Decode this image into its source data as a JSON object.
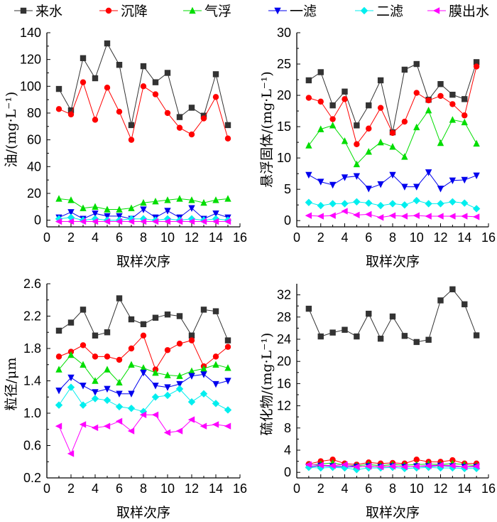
{
  "legend": [
    {
      "name": "来水",
      "color": "#333333",
      "marker": "square"
    },
    {
      "name": "沉降",
      "color": "#ff0000",
      "marker": "circle"
    },
    {
      "name": "气浮",
      "color": "#00dd00",
      "marker": "triangle-up"
    },
    {
      "name": "一滤",
      "color": "#0000ee",
      "marker": "triangle-down"
    },
    {
      "name": "二滤",
      "color": "#00eeee",
      "marker": "diamond"
    },
    {
      "name": "膜出水",
      "color": "#ff00ff",
      "marker": "triangle-left"
    }
  ],
  "chart_data": [
    {
      "type": "line",
      "xlabel": "取样次序",
      "ylabel": "油/(mg·L⁻¹)",
      "xlim": [
        0,
        16
      ],
      "ylim": [
        -5,
        140
      ],
      "xticks": [
        "0",
        "2",
        "4",
        "6",
        "8",
        "10",
        "12",
        "14",
        "16"
      ],
      "yticks": [
        "0",
        "20",
        "40",
        "60",
        "80",
        "100",
        "120",
        "140"
      ],
      "x": [
        1,
        2,
        3,
        4,
        5,
        6,
        7,
        8,
        9,
        10,
        11,
        12,
        13,
        14,
        15
      ],
      "series": [
        {
          "name": "来水",
          "values": [
            98,
            82,
            121,
            106,
            132,
            116,
            71,
            115,
            103,
            110,
            77,
            84,
            78,
            109,
            71
          ]
        },
        {
          "name": "沉降",
          "values": [
            83,
            79,
            103,
            75,
            99,
            81,
            60,
            100,
            94,
            80,
            69,
            64,
            76,
            92,
            61
          ]
        },
        {
          "name": "气浮",
          "values": [
            16,
            15,
            9,
            10,
            8,
            8,
            9,
            13,
            14,
            15,
            16,
            15,
            13,
            15,
            16
          ]
        },
        {
          "name": "一滤",
          "values": [
            2,
            6,
            1,
            5,
            3,
            3,
            1,
            8,
            2,
            7,
            2,
            9,
            1,
            5,
            2
          ]
        },
        {
          "name": "二滤",
          "values": [
            1,
            2,
            0,
            1,
            0,
            0,
            1,
            1,
            0,
            1,
            0,
            1,
            0,
            1,
            0
          ]
        },
        {
          "name": "膜出水",
          "values": [
            -1,
            -1,
            -1,
            -1,
            -1,
            -1,
            -1,
            -1,
            -1,
            -1,
            -1,
            -1,
            -1,
            -1,
            -1
          ]
        }
      ]
    },
    {
      "type": "line",
      "xlabel": "取样次序",
      "ylabel": "悬浮固体/(mg·L⁻¹)",
      "xlim": [
        0,
        16
      ],
      "ylim": [
        -1,
        30
      ],
      "xticks": [
        "0",
        "2",
        "4",
        "6",
        "8",
        "10",
        "12",
        "14",
        "16"
      ],
      "yticks": [
        "0",
        "5",
        "10",
        "15",
        "20",
        "25",
        "30"
      ],
      "x": [
        1,
        2,
        3,
        4,
        5,
        6,
        7,
        8,
        9,
        10,
        11,
        12,
        13,
        14,
        15
      ],
      "series": [
        {
          "name": "来水",
          "values": [
            22.4,
            23.7,
            18.4,
            20.6,
            15.2,
            18.4,
            22.4,
            14.1,
            24.1,
            25.0,
            19.3,
            21.8,
            20.1,
            19.4,
            25.3
          ]
        },
        {
          "name": "沉降",
          "values": [
            19.6,
            19.0,
            16.2,
            19.4,
            12.2,
            14.7,
            18.0,
            14.0,
            15.8,
            20.4,
            19.2,
            19.9,
            18.6,
            16.8,
            24.6
          ]
        },
        {
          "name": "气浮",
          "values": [
            12.0,
            14.6,
            15.2,
            12.7,
            9.0,
            11.0,
            12.5,
            11.8,
            10.2,
            14.9,
            17.6,
            12.4,
            16.1,
            15.7,
            12.3
          ]
        },
        {
          "name": "一滤",
          "values": [
            7.3,
            6.2,
            5.7,
            6.9,
            7.1,
            5.1,
            5.8,
            7.3,
            5.4,
            5.4,
            7.7,
            5.1,
            6.4,
            6.5,
            7.2
          ]
        },
        {
          "name": "二滤",
          "values": [
            2.9,
            2.4,
            2.7,
            2.7,
            3.0,
            2.8,
            2.4,
            2.7,
            2.5,
            3.2,
            2.7,
            2.7,
            3.0,
            2.8,
            1.9
          ]
        },
        {
          "name": "膜出水",
          "values": [
            0.8,
            0.7,
            0.8,
            1.5,
            0.9,
            1.0,
            0.5,
            0.8,
            0.7,
            0.8,
            0.7,
            0.7,
            0.7,
            0.7,
            0.6
          ]
        }
      ]
    },
    {
      "type": "line",
      "xlabel": "取样次序",
      "ylabel": "粒径/μm",
      "xlim": [
        0,
        16
      ],
      "ylim": [
        0.2,
        2.6
      ],
      "xticks": [
        "0",
        "2",
        "4",
        "6",
        "8",
        "10",
        "12",
        "14",
        "16"
      ],
      "yticks": [
        "0.2",
        "0.6",
        "1.0",
        "1.4",
        "1.8",
        "2.2",
        "2.6"
      ],
      "x": [
        1,
        2,
        3,
        4,
        5,
        6,
        7,
        8,
        9,
        10,
        11,
        12,
        13,
        14,
        15
      ],
      "series": [
        {
          "name": "来水",
          "values": [
            2.02,
            2.12,
            2.28,
            1.96,
            2.0,
            2.42,
            2.16,
            2.1,
            2.18,
            2.22,
            2.2,
            1.96,
            2.28,
            2.26,
            1.9
          ]
        },
        {
          "name": "沉降",
          "values": [
            1.7,
            1.76,
            1.84,
            1.7,
            1.7,
            1.66,
            1.8,
            1.96,
            1.54,
            1.78,
            1.86,
            1.9,
            1.58,
            1.7,
            1.82
          ]
        },
        {
          "name": "气浮",
          "values": [
            1.54,
            1.72,
            1.6,
            1.4,
            1.54,
            1.38,
            1.6,
            1.56,
            1.5,
            1.47,
            1.46,
            1.52,
            1.55,
            1.6,
            1.56
          ]
        },
        {
          "name": "一滤",
          "values": [
            1.28,
            1.44,
            1.34,
            1.26,
            1.3,
            1.24,
            1.24,
            1.5,
            1.34,
            1.32,
            1.36,
            1.46,
            1.48,
            1.36,
            1.4
          ]
        },
        {
          "name": "二滤",
          "values": [
            1.1,
            1.32,
            1.1,
            1.18,
            1.16,
            1.08,
            1.06,
            1.02,
            1.2,
            1.22,
            1.3,
            1.14,
            1.24,
            1.12,
            1.04
          ]
        },
        {
          "name": "膜出水",
          "values": [
            0.84,
            0.5,
            0.86,
            0.82,
            0.84,
            0.9,
            0.78,
            0.98,
            0.98,
            0.76,
            0.78,
            0.92,
            0.84,
            0.86,
            0.84
          ]
        }
      ]
    },
    {
      "type": "line",
      "xlabel": "取样次序",
      "ylabel": "硫化物/(mg·L⁻¹)",
      "xlim": [
        0,
        16
      ],
      "ylim": [
        -1,
        34
      ],
      "xticks": [
        "0",
        "2",
        "4",
        "6",
        "8",
        "10",
        "12",
        "14",
        "16"
      ],
      "yticks": [
        "0",
        "4",
        "8",
        "12",
        "16",
        "20",
        "24",
        "28",
        "32"
      ],
      "x": [
        1,
        2,
        3,
        4,
        5,
        6,
        7,
        8,
        9,
        10,
        11,
        12,
        13,
        14,
        15
      ],
      "series": [
        {
          "name": "来水",
          "values": [
            29.5,
            24.5,
            25.2,
            25.7,
            24.5,
            28.6,
            24.1,
            28.1,
            24.6,
            23.5,
            23.9,
            31.0,
            33.0,
            30.3,
            24.7
          ]
        },
        {
          "name": "沉降",
          "values": [
            1.5,
            2.0,
            2.3,
            1.6,
            1.4,
            1.8,
            1.6,
            1.7,
            1.6,
            2.3,
            1.9,
            1.9,
            2.2,
            1.6,
            1.6
          ]
        },
        {
          "name": "气浮",
          "values": [
            1.3,
            1.5,
            1.7,
            1.3,
            1.2,
            1.4,
            1.2,
            1.4,
            1.3,
            1.4,
            1.5,
            1.4,
            1.6,
            1.4,
            1.2
          ]
        },
        {
          "name": "一滤",
          "values": [
            1.0,
            1.2,
            1.1,
            1.0,
            1.0,
            1.1,
            1.0,
            1.1,
            1.0,
            1.1,
            1.1,
            1.2,
            1.1,
            1.0,
            1.0
          ]
        },
        {
          "name": "二滤",
          "values": [
            0.9,
            0.8,
            0.9,
            0.8,
            0.5,
            0.8,
            0.8,
            0.9,
            0.7,
            0.8,
            0.9,
            0.8,
            0.8,
            0.7,
            0.7
          ]
        },
        {
          "name": "膜出水",
          "values": [
            1.4,
            1.3,
            1.2,
            1.4,
            1.0,
            1.1,
            1.0,
            1.1,
            1.0,
            1.1,
            1.2,
            1.3,
            1.2,
            1.0,
            1.1
          ]
        }
      ]
    }
  ]
}
